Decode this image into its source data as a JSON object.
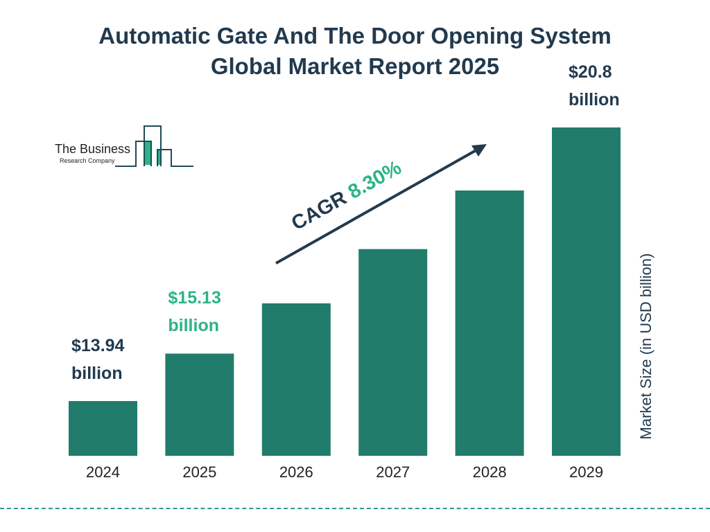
{
  "title_line1": "Automatic Gate And The Door Opening System",
  "title_line2": "Global Market Report 2025",
  "logo": {
    "line1": "The Business",
    "line2": "Research Company"
  },
  "colors": {
    "bar": "#217c6b",
    "text": "#223a4e",
    "accent": "#2db389",
    "logo_green": "#2bb585"
  },
  "chart_data": {
    "type": "bar",
    "title": "Automatic Gate And The Door Opening System Global Market Report 2025",
    "categories": [
      "2024",
      "2025",
      "2026",
      "2027",
      "2028",
      "2029"
    ],
    "values": [
      13.94,
      15.13,
      16.39,
      17.75,
      19.22,
      20.8
    ],
    "ylabel": "Market Size (in USD billion)",
    "xlabel": "",
    "grid": false,
    "annotations": {
      "cagr_label": "CAGR",
      "cagr_value": "8.30%",
      "labels": [
        {
          "category": "2024",
          "value": "$13.94",
          "unit": "billion",
          "highlight": false
        },
        {
          "category": "2025",
          "value": "$15.13",
          "unit": "billion",
          "highlight": true
        },
        {
          "category": "2029",
          "value": "$20.8",
          "unit": "billion",
          "highlight": false
        }
      ]
    }
  }
}
